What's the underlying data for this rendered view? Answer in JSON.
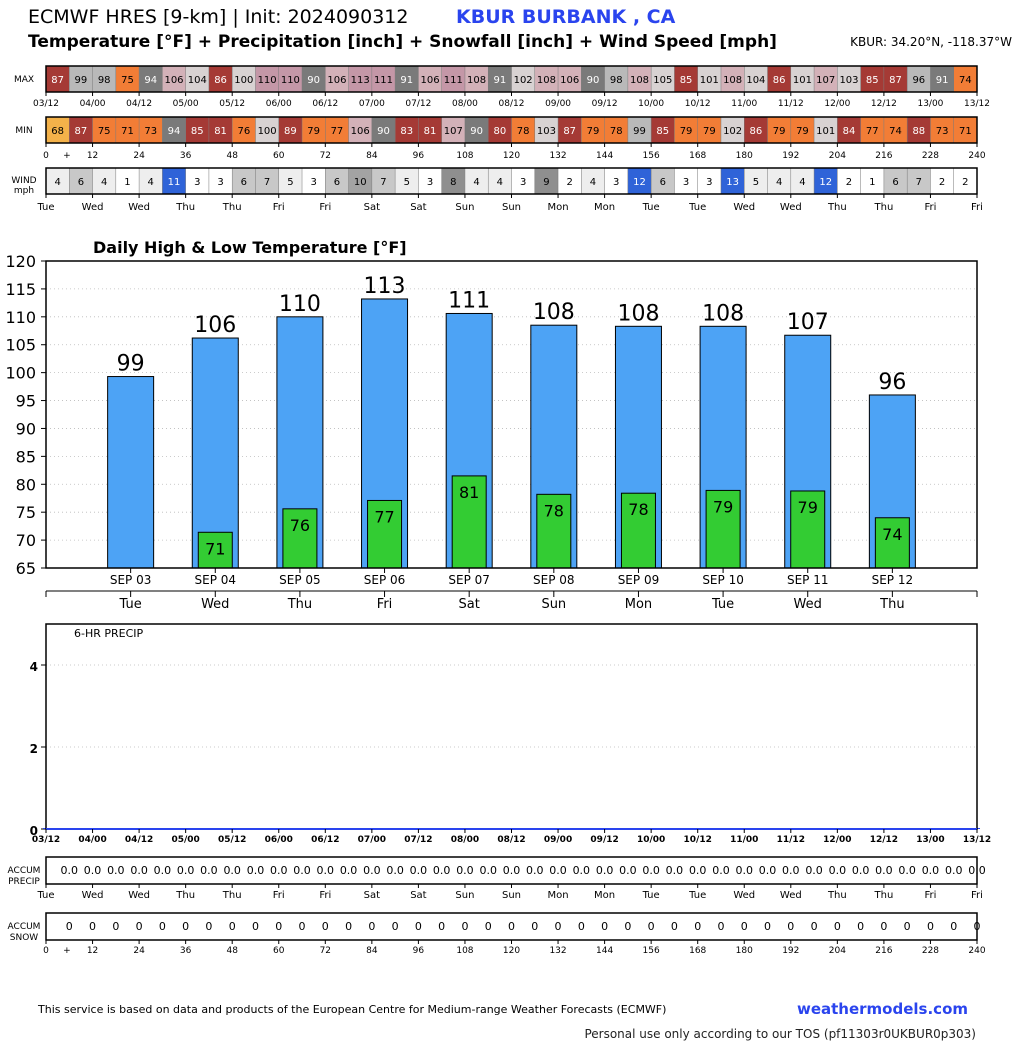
{
  "header": {
    "title": "ECMWF HRES [9-km] | Init: 2024090312",
    "station": "KBUR BURBANK       , CA",
    "subtitle": "Temperature [°F] + Precipitation [inch] + Snowfall [inch] + Wind Speed [mph]",
    "coords": "KBUR: 34.20°N, -118.37°W"
  },
  "strips": {
    "max_label": "MAX",
    "min_label": "MIN",
    "wind_label_1": "WIND",
    "wind_label_2": "mph",
    "accum_precip_label_1": "ACCUM",
    "accum_precip_label_2": "PRECIP",
    "accum_snow_label_1": "ACCUM",
    "accum_snow_label_2": "SNOW"
  },
  "time_labels": [
    "03/12",
    "04/00",
    "04/12",
    "05/00",
    "05/12",
    "06/00",
    "06/12",
    "07/00",
    "07/12",
    "08/00",
    "08/12",
    "09/00",
    "09/12",
    "10/00",
    "10/12",
    "11/00",
    "11/12",
    "12/00",
    "12/12",
    "13/00",
    "13/12"
  ],
  "hour_labels": [
    "0",
    "+",
    "12",
    "24",
    "36",
    "48",
    "60",
    "72",
    "84",
    "96",
    "108",
    "120",
    "132",
    "144",
    "156",
    "168",
    "180",
    "192",
    "204",
    "216",
    "228",
    "240"
  ],
  "day_labels": [
    "Tue",
    "Wed",
    "Wed",
    "Thu",
    "Thu",
    "Fri",
    "Fri",
    "Sat",
    "Sat",
    "Sun",
    "Sun",
    "Mon",
    "Mon",
    "Tue",
    "Tue",
    "Wed",
    "Wed",
    "Thu",
    "Thu",
    "Fri",
    "Fri"
  ],
  "max_values": [
    87,
    99,
    98,
    75,
    94,
    106,
    104,
    86,
    100,
    110,
    110,
    90,
    106,
    113,
    111,
    91,
    106,
    111,
    108,
    91,
    102,
    108,
    106,
    90,
    98,
    108,
    105,
    85,
    101,
    108,
    104,
    86,
    101,
    107,
    103,
    85,
    87,
    96,
    91,
    74
  ],
  "min_values": [
    68,
    87,
    75,
    71,
    73,
    94,
    85,
    81,
    76,
    100,
    89,
    79,
    77,
    106,
    90,
    83,
    81,
    107,
    90,
    80,
    78,
    103,
    87,
    79,
    78,
    99,
    85,
    79,
    79,
    102,
    86,
    79,
    79,
    101,
    84,
    77,
    74,
    88,
    73,
    71
  ],
  "wind_values": [
    4,
    6,
    4,
    1,
    4,
    11,
    3,
    3,
    6,
    7,
    5,
    3,
    6,
    10,
    7,
    5,
    3,
    8,
    4,
    4,
    3,
    9,
    2,
    4,
    3,
    12,
    6,
    3,
    3,
    13,
    5,
    4,
    4,
    12,
    2,
    1,
    6,
    7,
    2,
    2
  ],
  "accum_precip_values": [
    "0.0",
    "0.0",
    "0.0",
    "0.0",
    "0.0",
    "0.0",
    "0.0",
    "0.0",
    "0.0",
    "0.0",
    "0.0",
    "0.0",
    "0.0",
    "0.0",
    "0.0",
    "0.0",
    "0.0",
    "0.0",
    "0.0",
    "0.0",
    "0.0",
    "0.0",
    "0.0",
    "0.0",
    "0.0",
    "0.0",
    "0.0",
    "0.0",
    "0.0",
    "0.0",
    "0.0",
    "0.0",
    "0.0",
    "0.0",
    "0.0",
    "0.0",
    "0.0",
    "0.0",
    "0.0",
    "0.0"
  ],
  "accum_snow_values": [
    "0",
    "0",
    "0",
    "0",
    "0",
    "0",
    "0",
    "0",
    "0",
    "0",
    "0",
    "0",
    "0",
    "0",
    "0",
    "0",
    "0",
    "0",
    "0",
    "0",
    "0",
    "0",
    "0",
    "0",
    "0",
    "0",
    "0",
    "0",
    "0",
    "0",
    "0",
    "0",
    "0",
    "0",
    "0",
    "0",
    "0",
    "0",
    "0",
    "0"
  ],
  "chart_data": [
    {
      "type": "bar",
      "title": "Daily High & Low Temperature [°F]",
      "categories": [
        "SEP 03",
        "SEP 04",
        "SEP 05",
        "SEP 06",
        "SEP 07",
        "SEP 08",
        "SEP 09",
        "SEP 10",
        "SEP 11",
        "SEP 12"
      ],
      "day_names": [
        "Tue",
        "Wed",
        "Thu",
        "Fri",
        "Sat",
        "Sun",
        "Mon",
        "Tue",
        "Wed",
        "Thu"
      ],
      "series": [
        {
          "values": [
            99,
            106,
            110,
            113,
            111,
            108,
            108,
            108,
            107,
            96
          ],
          "color": "#4da3f5"
        },
        {
          "values": [
            null,
            71,
            76,
            77,
            81,
            78,
            78,
            79,
            79,
            74
          ],
          "color": "#33cc33"
        }
      ],
      "high_exact": [
        99.3,
        106.2,
        110.0,
        113.2,
        110.6,
        108.5,
        108.3,
        108.3,
        106.7,
        96.0
      ],
      "low_exact": [
        null,
        71.4,
        75.6,
        77.1,
        81.5,
        78.2,
        78.4,
        78.9,
        78.8,
        74.0
      ],
      "ylim": [
        65,
        120
      ],
      "yticks": [
        65,
        70,
        75,
        80,
        85,
        90,
        95,
        100,
        105,
        110,
        115,
        120
      ],
      "grid": true
    },
    {
      "type": "bar",
      "title": "6-HR PRECIP",
      "categories": [
        "03/12",
        "04/00",
        "04/12",
        "05/00",
        "05/12",
        "06/00",
        "06/12",
        "07/00",
        "07/12",
        "08/00",
        "08/12",
        "09/00",
        "09/12",
        "10/00",
        "10/12",
        "11/00",
        "11/12",
        "12/00",
        "12/12",
        "13/00",
        "13/12"
      ],
      "values": [
        0,
        0,
        0,
        0,
        0,
        0,
        0,
        0,
        0,
        0,
        0,
        0,
        0,
        0,
        0,
        0,
        0,
        0,
        0,
        0,
        0
      ],
      "ylim": [
        0,
        5
      ],
      "yticks": [
        0,
        2,
        4
      ],
      "grid": true
    }
  ],
  "footer": {
    "note": "This service is based on data and products of the European Centre for Medium-range Weather Forecasts (ECMWF)",
    "brand": "weathermodels.com",
    "tos": "Personal use only according to our TOS (pf11303r0UKBUR0p303)"
  }
}
